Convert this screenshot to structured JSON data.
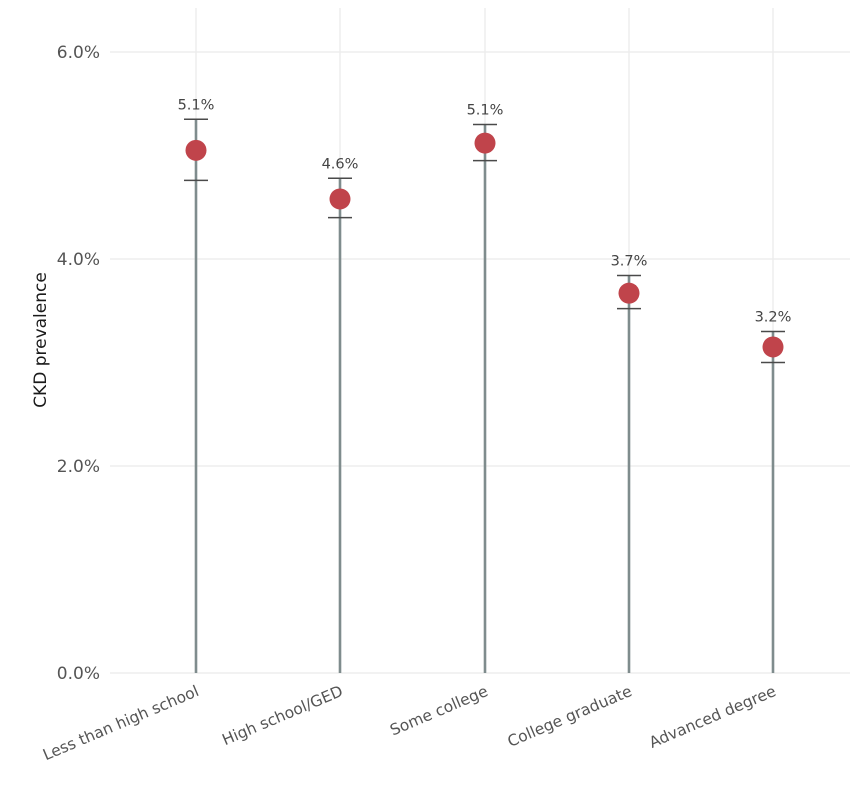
{
  "chart_data": {
    "type": "lollipop",
    "categories": [
      "Less than high school",
      "High school/GED",
      "Some college",
      "College graduate",
      "Advanced degree"
    ],
    "values": [
      5.05,
      4.58,
      5.12,
      3.67,
      3.15
    ],
    "ci_low": [
      4.76,
      4.4,
      4.95,
      3.52,
      3.0
    ],
    "ci_high": [
      5.35,
      4.78,
      5.3,
      3.84,
      3.3
    ],
    "data_labels": [
      "5.1%",
      "4.6%",
      "5.1%",
      "3.7%",
      "3.2%"
    ],
    "xlabel": "",
    "ylabel": "CKD prevalence",
    "ylim": [
      0,
      6.2
    ],
    "yticks": [
      0,
      2,
      4,
      6
    ],
    "ytick_labels": [
      "0.0%",
      "2.0%",
      "4.0%",
      "6.0%"
    ],
    "grid": true,
    "colors": {
      "point": "#c0444b",
      "stem": "#7f8c8d",
      "error_bar": "#4a4a4a",
      "grid": "#ebebeb"
    }
  }
}
